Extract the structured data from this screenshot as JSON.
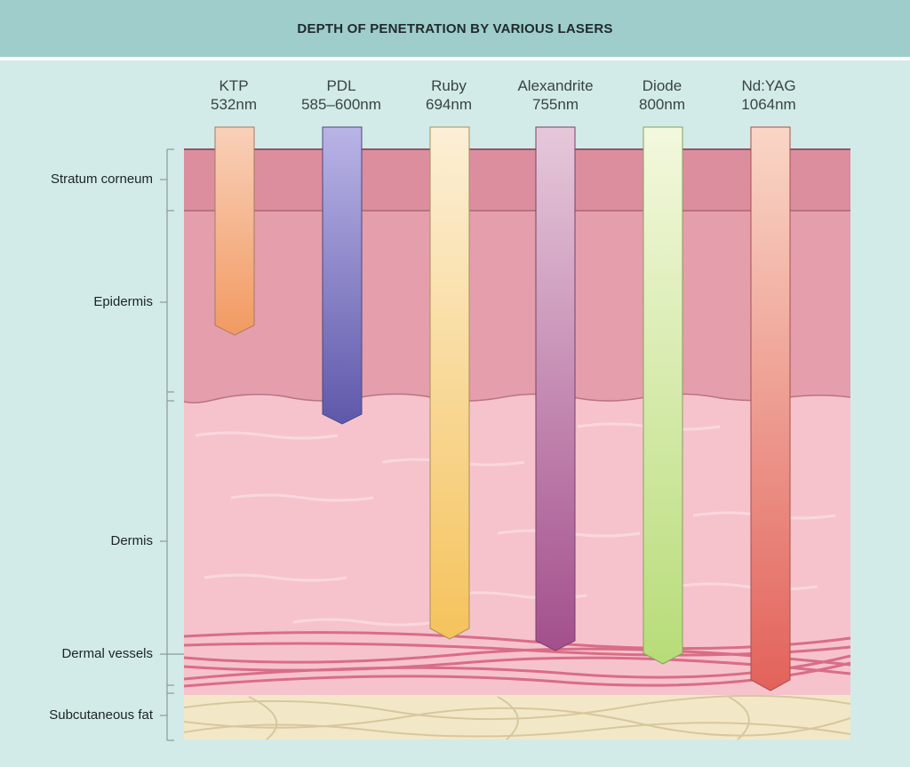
{
  "title": "DEPTH OF PENETRATION BY VARIOUS LASERS",
  "lasers": [
    {
      "name": "KTP",
      "wavelength": "532nm",
      "top_color": "#f8d0b8",
      "bottom_color": "#f29a62"
    },
    {
      "name": "PDL",
      "wavelength": "585–600nm",
      "top_color": "#b9b4e6",
      "bottom_color": "#5f58ab"
    },
    {
      "name": "Ruby",
      "wavelength": "694nm",
      "top_color": "#fcefd6",
      "bottom_color": "#f5c35c"
    },
    {
      "name": "Alexandrite",
      "wavelength": "755nm",
      "top_color": "#e6c8da",
      "bottom_color": "#a34f8c"
    },
    {
      "name": "Diode",
      "wavelength": "800nm",
      "top_color": "#f3f8dd",
      "bottom_color": "#b7dc78"
    },
    {
      "name": "Nd:YAG",
      "wavelength": "1064nm",
      "top_color": "#f9d6c6",
      "bottom_color": "#e2625b"
    }
  ],
  "layers": [
    {
      "name": "Stratum corneum"
    },
    {
      "name": "Epidermis"
    },
    {
      "name": "Dermis"
    },
    {
      "name": "Dermal vessels"
    },
    {
      "name": "Subcutaneous fat"
    }
  ],
  "colors": {
    "background": "#d2ebe8",
    "header": "#9ecdcb",
    "stratum_corneum": "#dc8e9f",
    "epidermis": "#e59eab",
    "dermis": "#f6c3cd",
    "vessels": "#d96d86",
    "fat": "#f2e8c8"
  }
}
